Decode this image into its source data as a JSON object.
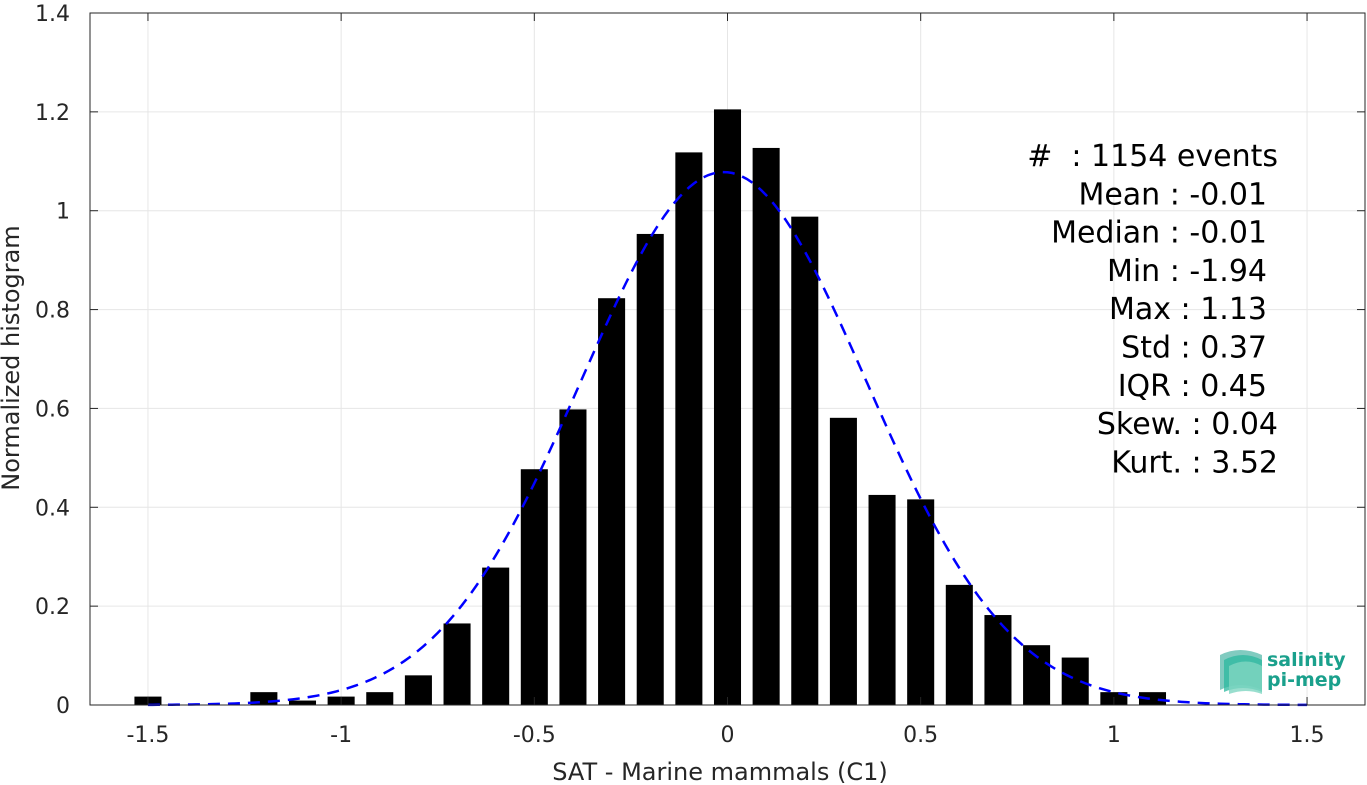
{
  "chart_data": {
    "type": "bar",
    "xlabel": "SAT - Marine mammals (C1)",
    "ylabel": "Normalized histogram",
    "xlim": [
      -1.65,
      1.65
    ],
    "ylim": [
      0,
      1.4
    ],
    "xticks": [
      -1.5,
      -1,
      -0.5,
      0,
      0.5,
      1,
      1.5
    ],
    "xtick_labels": [
      "-1.5",
      "-1",
      "-0.5",
      "0",
      "0.5",
      "1",
      "1.5"
    ],
    "yticks": [
      0,
      0.2,
      0.4,
      0.6,
      0.8,
      1,
      1.2,
      1.4
    ],
    "ytick_labels": [
      "0",
      "0.2",
      "0.4",
      "0.6",
      "0.8",
      "1",
      "1.2",
      "1.4"
    ],
    "grid": true,
    "bar_width": 0.07,
    "bars": {
      "x": [
        -1.5,
        -1.2,
        -1.1,
        -1.0,
        -0.9,
        -0.8,
        -0.7,
        -0.6,
        -0.5,
        -0.4,
        -0.3,
        -0.2,
        -0.1,
        0.0,
        0.1,
        0.2,
        0.3,
        0.4,
        0.5,
        0.6,
        0.7,
        0.8,
        0.9,
        1.0,
        1.1
      ],
      "values": [
        0.017,
        0.026,
        0.009,
        0.017,
        0.026,
        0.06,
        0.165,
        0.278,
        0.477,
        0.598,
        0.823,
        0.953,
        1.118,
        1.205,
        1.127,
        0.988,
        0.581,
        0.425,
        0.416,
        0.243,
        0.182,
        0.121,
        0.096,
        0.026,
        0.026
      ],
      "color": "#000000"
    },
    "fit_curve": {
      "style": "dashed",
      "color": "#0000ff",
      "mean": -0.01,
      "std": 0.37,
      "x_range": [
        -1.5,
        1.5
      ]
    }
  },
  "stats": [
    "#  : 1154 events",
    "Mean : -0.01",
    "Median : -0.01",
    "Min : -1.94",
    "Max : 1.13",
    "Std : 0.37",
    "IQR : 0.45",
    "Skew. : 0.04",
    "Kurt. : 3.52"
  ],
  "logo": {
    "line1": "salinity",
    "line2": "pi-mep",
    "color": "#1aa08c"
  }
}
